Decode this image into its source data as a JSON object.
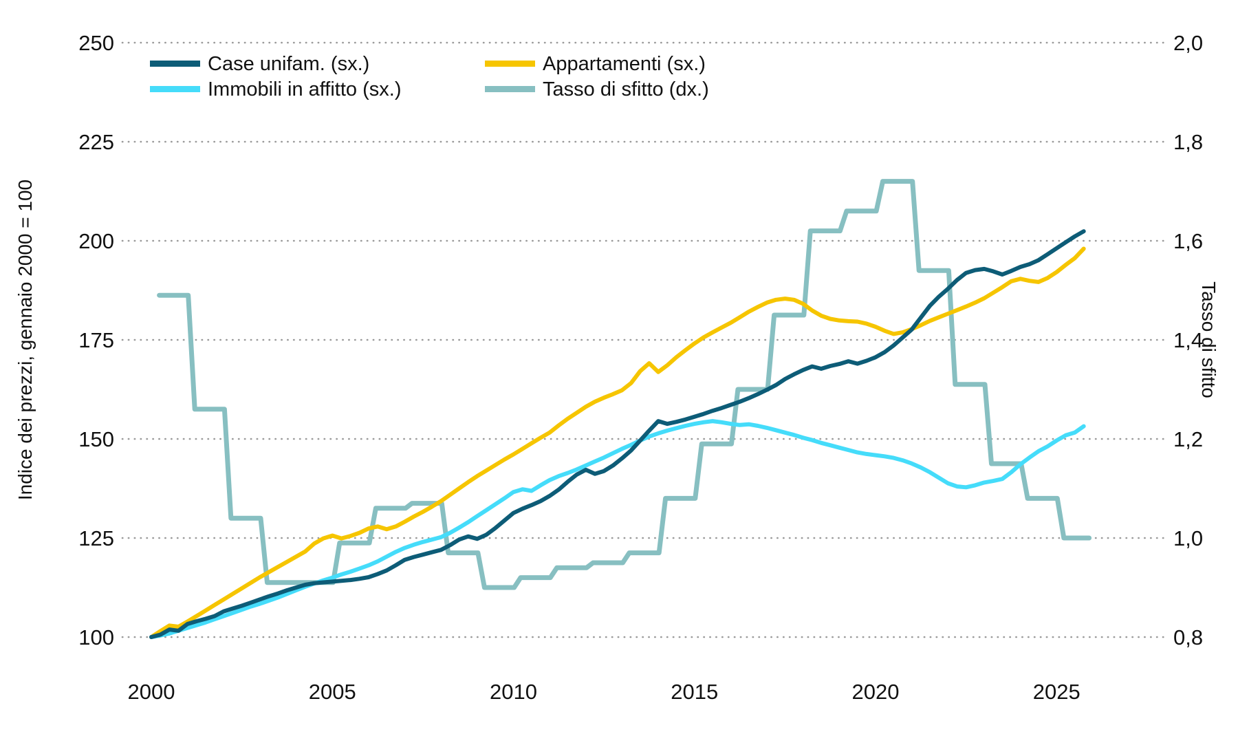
{
  "chart_data": {
    "type": "line",
    "left_axis": {
      "label": "Indice dei prezzi, gennaio 2000 = 100",
      "range": [
        100,
        250
      ],
      "ticks": [
        250,
        225,
        200,
        175,
        150,
        125,
        100
      ],
      "tick_labels": [
        "250",
        "225",
        "200",
        "175",
        "150",
        "125",
        "100"
      ]
    },
    "right_axis": {
      "label": "Tasso di sfitto",
      "range": [
        0.8,
        2.0
      ],
      "ticks": [
        2.0,
        1.8,
        1.6,
        1.4,
        1.2,
        1.0,
        0.8
      ],
      "tick_labels": [
        "2,0",
        "1,8",
        "1,6",
        "1,4",
        "1,2",
        "1,0",
        "0,8"
      ]
    },
    "x_axis": {
      "range": [
        2000,
        2026
      ],
      "ticks": [
        2000,
        2005,
        2010,
        2015,
        2020,
        2025
      ],
      "tick_labels": [
        "2000",
        "2005",
        "2010",
        "2015",
        "2020",
        "2025"
      ]
    },
    "grid": "horizontal-dotted",
    "legend_position": "top-left-two-columns",
    "colors": {
      "case_unifam": "#0d5c77",
      "appartamenti": "#f6c500",
      "immobili_affitto": "#45dcfa",
      "tasso_sfitto": "#87bfc1",
      "gridline": "#9a9a9a",
      "text": "#111111"
    },
    "series": [
      {
        "id": "case_unifam",
        "name": "Case unifam. (sx.)",
        "axis": "left",
        "style": "line",
        "x_start": 2000,
        "x_step": 0.25,
        "values": [
          100.0,
          100.6,
          101.9,
          101.6,
          103.3,
          104.0,
          104.6,
          105.3,
          106.5,
          107.2,
          107.9,
          108.7,
          109.5,
          110.3,
          111.0,
          111.8,
          112.5,
          113.2,
          113.6,
          113.8,
          114.0,
          114.2,
          114.4,
          114.7,
          115.1,
          115.9,
          116.8,
          118.1,
          119.5,
          120.2,
          120.8,
          121.4,
          122.0,
          123.2,
          124.6,
          125.4,
          124.8,
          125.8,
          127.5,
          129.4,
          131.3,
          132.4,
          133.3,
          134.3,
          135.6,
          137.2,
          139.2,
          141.0,
          142.2,
          141.2,
          141.9,
          143.3,
          145.1,
          147.1,
          149.6,
          152.1,
          154.5,
          153.8,
          154.3,
          154.9,
          155.6,
          156.3,
          157.1,
          157.8,
          158.6,
          159.4,
          160.3,
          161.3,
          162.4,
          163.6,
          165.1,
          166.3,
          167.4,
          168.3,
          167.7,
          168.4,
          168.9,
          169.6,
          169.0,
          169.7,
          170.6,
          171.9,
          173.6,
          175.6,
          177.6,
          180.6,
          183.6,
          185.9,
          187.9,
          190.1,
          191.9,
          192.6,
          192.9,
          192.3,
          191.5,
          192.4,
          193.4,
          194.1,
          195.1,
          196.6,
          198.1,
          199.6,
          201.1,
          202.4
        ]
      },
      {
        "id": "appartamenti",
        "name": "Appartamenti (sx.)",
        "axis": "left",
        "style": "line",
        "x_start": 2000,
        "x_step": 0.25,
        "values": [
          100.0,
          101.5,
          102.9,
          102.6,
          103.9,
          105.3,
          106.7,
          108.1,
          109.5,
          110.9,
          112.3,
          113.7,
          115.1,
          116.4,
          117.7,
          119.0,
          120.3,
          121.6,
          123.6,
          124.9,
          125.6,
          124.9,
          125.5,
          126.3,
          127.4,
          127.9,
          127.2,
          127.9,
          129.1,
          130.4,
          131.6,
          132.9,
          134.3,
          135.9,
          137.5,
          139.1,
          140.6,
          142.0,
          143.4,
          144.8,
          146.1,
          147.5,
          148.9,
          150.3,
          151.6,
          153.4,
          155.1,
          156.6,
          158.1,
          159.4,
          160.4,
          161.3,
          162.3,
          164.1,
          167.1,
          169.1,
          166.9,
          168.6,
          170.6,
          172.4,
          174.1,
          175.6,
          176.9,
          178.1,
          179.3,
          180.7,
          182.1,
          183.3,
          184.4,
          185.1,
          185.4,
          185.1,
          184.1,
          182.4,
          181.1,
          180.3,
          179.9,
          179.7,
          179.6,
          179.1,
          178.3,
          177.3,
          176.5,
          176.9,
          177.7,
          178.7,
          179.8,
          180.7,
          181.6,
          182.5,
          183.4,
          184.4,
          185.5,
          186.9,
          188.3,
          189.8,
          190.4,
          189.9,
          189.6,
          190.6,
          192.1,
          193.9,
          195.6,
          198.0
        ]
      },
      {
        "id": "immobili_affitto",
        "name": "Immobili in affitto (sx.)",
        "axis": "left",
        "style": "line",
        "x_start": 2000,
        "x_step": 0.25,
        "values": [
          100.0,
          100.4,
          100.9,
          101.6,
          102.3,
          103.0,
          103.7,
          104.5,
          105.3,
          106.1,
          106.9,
          107.7,
          108.4,
          109.2,
          110.0,
          110.9,
          111.8,
          112.7,
          113.5,
          114.3,
          115.0,
          115.8,
          116.5,
          117.3,
          118.1,
          119.1,
          120.3,
          121.5,
          122.5,
          123.3,
          124.0,
          124.6,
          125.2,
          126.3,
          127.6,
          129.0,
          130.5,
          132.0,
          133.5,
          135.0,
          136.6,
          137.3,
          136.9,
          138.3,
          139.6,
          140.6,
          141.4,
          142.3,
          143.3,
          144.3,
          145.3,
          146.4,
          147.5,
          148.5,
          149.6,
          150.6,
          151.4,
          152.1,
          152.7,
          153.3,
          153.8,
          154.2,
          154.5,
          154.2,
          153.8,
          153.5,
          153.7,
          153.3,
          152.8,
          152.2,
          151.6,
          151.0,
          150.3,
          149.7,
          149.0,
          148.4,
          147.8,
          147.2,
          146.6,
          146.2,
          145.9,
          145.6,
          145.2,
          144.6,
          143.8,
          142.8,
          141.6,
          140.2,
          138.8,
          138.0,
          137.8,
          138.3,
          139.0,
          139.4,
          139.9,
          141.6,
          143.6,
          145.3,
          146.9,
          148.1,
          149.6,
          150.9,
          151.6,
          153.2
        ]
      },
      {
        "id": "tasso_sfitto",
        "name": "Tasso di sfitto (dx.)",
        "axis": "right",
        "style": "step-annual",
        "x_start": 2000,
        "x_step": 1,
        "values": [
          1.49,
          1.26,
          1.04,
          0.91,
          0.91,
          0.99,
          1.06,
          1.07,
          0.97,
          0.9,
          0.92,
          0.94,
          0.95,
          0.97,
          1.08,
          1.19,
          1.3,
          1.45,
          1.62,
          1.66,
          1.72,
          1.54,
          1.31,
          1.15,
          1.08,
          1.0
        ]
      }
    ]
  }
}
